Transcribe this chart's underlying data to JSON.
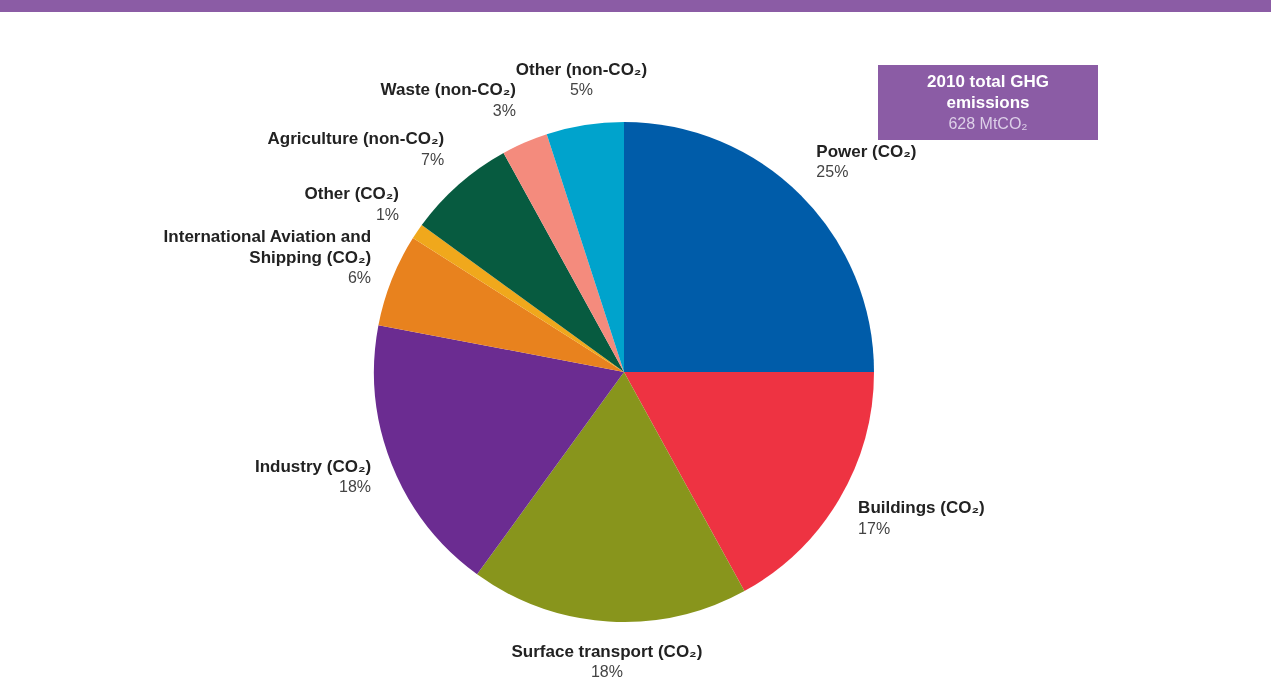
{
  "chart_data": {
    "type": "pie",
    "categories": [
      "Power (CO₂)",
      "Buildings (CO₂)",
      "Surface transport (CO₂)",
      "Industry (CO₂)",
      "International Aviation and Shipping (CO₂)",
      "Other (CO₂)",
      "Agriculture (non-CO₂)",
      "Waste (non-CO₂)",
      "Other (non-CO₂)"
    ],
    "values": [
      25,
      17,
      18,
      18,
      6,
      1,
      7,
      3,
      5
    ],
    "colors": [
      "#005ca9",
      "#ee3342",
      "#88951c",
      "#6b2c91",
      "#e8821e",
      "#f0a81c",
      "#075b40",
      "#f48b7d",
      "#00a3cc"
    ],
    "value_labels": [
      "25%",
      "17%",
      "18%",
      "18%",
      "6%",
      "1%",
      "7%",
      "3%",
      "5%"
    ],
    "annotations": [
      "2010 total GHG emissions",
      "628 MtCO₂"
    ]
  }
}
